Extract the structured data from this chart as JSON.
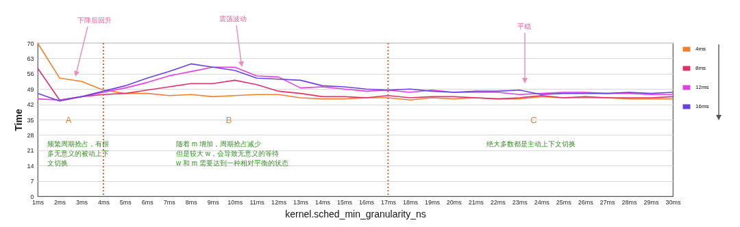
{
  "chart_data": {
    "type": "line",
    "xlabel": "kernel.sched_min_granularity_ns",
    "ylabel": "Time",
    "categories": [
      "1ms",
      "2ms",
      "3ms",
      "4ms",
      "5ms",
      "6ms",
      "7ms",
      "8ms",
      "9ms",
      "10ms",
      "11ms",
      "12ms",
      "13ms",
      "14ms",
      "15ms",
      "16ms",
      "17ms",
      "18ms",
      "19ms",
      "20ms",
      "21ms",
      "22ms",
      "23ms",
      "24ms",
      "25ms",
      "26ms",
      "27ms",
      "28ms",
      "29ms",
      "30ms"
    ],
    "series": [
      {
        "name": "4ms",
        "color": "#f08030",
        "values": [
          70,
          54,
          52.5,
          48.5,
          47,
          47,
          46,
          46.5,
          45.5,
          46,
          46.5,
          46.5,
          45,
          44.5,
          44.5,
          45,
          45,
          44,
          45,
          44.5,
          45,
          44.5,
          44.5,
          45.5,
          45,
          45,
          45,
          44.5,
          44.5,
          44.5
        ]
      },
      {
        "name": "8ms",
        "color": "#e0306a",
        "values": [
          58.5,
          44,
          45.5,
          46.5,
          47,
          48.5,
          50,
          51.5,
          51.5,
          53,
          51,
          48,
          47,
          45.5,
          45.5,
          45,
          46,
          45,
          45.5,
          45.5,
          45,
          44.5,
          45,
          46,
          45,
          45.5,
          45,
          45,
          45,
          45.5
        ]
      },
      {
        "name": "12ms",
        "color": "#e040e0",
        "values": [
          44.5,
          44,
          45.5,
          47.5,
          49.5,
          52,
          55,
          57,
          59,
          59,
          55,
          54.5,
          49.5,
          50,
          49,
          48,
          48.5,
          47.5,
          48.5,
          47.5,
          47.5,
          47.5,
          46.5,
          47,
          47.5,
          47.5,
          47,
          47,
          46.5,
          46.5
        ]
      },
      {
        "name": "16ms",
        "color": "#6a40e0",
        "values": [
          47,
          43.5,
          45.5,
          48,
          50.5,
          54,
          57,
          60.5,
          59,
          57.5,
          54,
          53.5,
          53,
          50.5,
          50,
          49,
          48.5,
          49,
          48,
          47.5,
          48,
          48,
          48.5,
          46.5,
          47,
          47,
          47,
          47.5,
          47,
          47.5
        ]
      }
    ],
    "ylim": [
      0,
      70
    ],
    "yticks": [
      0,
      7,
      14,
      21,
      28,
      35,
      42,
      49,
      56,
      63,
      70
    ],
    "grid": "y",
    "legend": "top right",
    "ref_lines": [
      {
        "axis": "x",
        "value": "4ms",
        "color": "#e06030",
        "line_style": "dotted"
      },
      {
        "axis": "x",
        "value": "17ms",
        "color": "#e06030",
        "line_style": "dotted"
      }
    ],
    "annotations": [
      "下降后回升",
      "震荡波动",
      "平稳",
      "A",
      "B",
      "C",
      "频繁周期抢占，有很多无意义的被动上下文切换",
      "随着 m 增加，周期抢占减少",
      "但是较大 w，会导致无意义的等待",
      "w 和 m 需要达到一种相对平衡的状态",
      "绝大多数都是主动上下文切换"
    ]
  }
}
